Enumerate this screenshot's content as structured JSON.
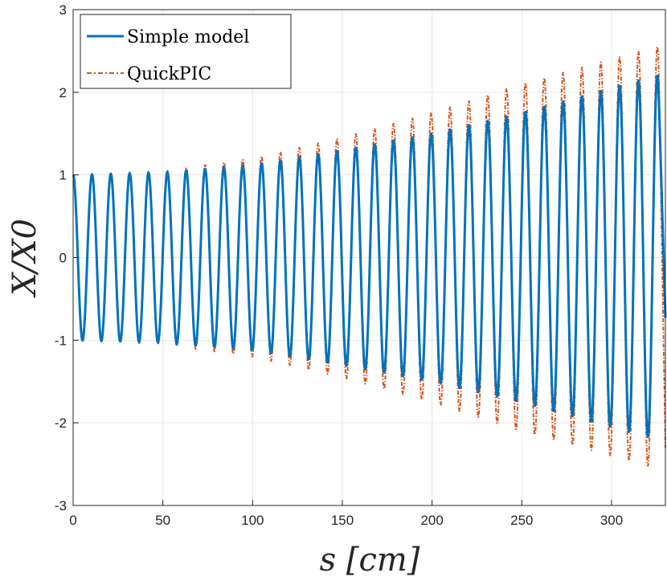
{
  "chart_data": {
    "type": "line",
    "xlabel": "s [cm]",
    "ylabel": "X/X0",
    "xlim": [
      0,
      330
    ],
    "ylim": [
      -3,
      3
    ],
    "xticks": [
      "0",
      "50",
      "100",
      "150",
      "200",
      "250",
      "300"
    ],
    "yticks": [
      "3",
      "2",
      "1",
      "0",
      "-1",
      "-2",
      "-3"
    ],
    "xtick_values": [
      0,
      50,
      100,
      150,
      200,
      250,
      300
    ],
    "ytick_values": [
      3,
      2,
      1,
      0,
      -1,
      -2,
      -3
    ],
    "grid": true,
    "legend_position": "top-left",
    "oscillation_period_cm": 10.5,
    "series": [
      {
        "name": "Simple model",
        "style": "solid",
        "color": "#0072BD",
        "envelope_s": [
          0,
          50,
          100,
          150,
          200,
          250,
          300,
          325
        ],
        "envelope_amplitude": [
          1.0,
          1.03,
          1.12,
          1.3,
          1.5,
          1.75,
          2.05,
          2.2
        ],
        "end_point": [
          330,
          -0.73
        ]
      },
      {
        "name": "QuickPIC",
        "style": "dash-dot",
        "color": "#D95319",
        "envelope_s": [
          0,
          50,
          100,
          150,
          200,
          250,
          300,
          325
        ],
        "envelope_amplitude": [
          1.0,
          1.05,
          1.2,
          1.45,
          1.75,
          2.1,
          2.4,
          2.55
        ],
        "end_point": [
          330,
          -2.3
        ]
      }
    ],
    "legend": [
      "Simple model",
      "QuickPIC"
    ]
  }
}
